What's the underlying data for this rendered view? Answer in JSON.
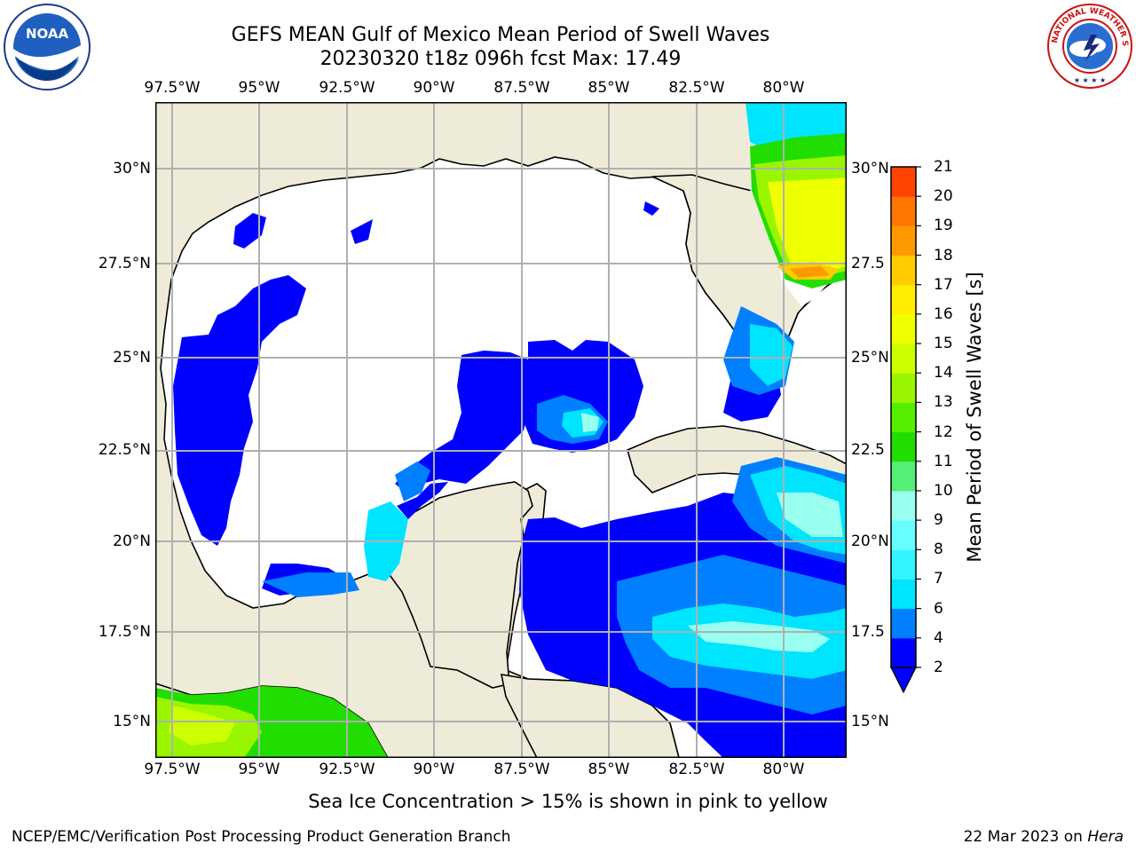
{
  "header": {
    "title_line1": "GEFS MEAN Gulf of Mexico Mean Period of Swell Waves",
    "title_line2": "20230320 t18z 096h fcst   Max: 17.49"
  },
  "logos": {
    "left": {
      "name": "noaa-logo",
      "text": "NOAA"
    },
    "right": {
      "name": "nws-logo",
      "text": "NATIONAL WEATHER SERVICE"
    }
  },
  "map": {
    "lon_labels": [
      "97.5°W",
      "95°W",
      "92.5°W",
      "90°W",
      "87.5°W",
      "85°W",
      "82.5°W",
      "80°W"
    ],
    "lat_labels_left": [
      "30°N",
      "27.5°N",
      "25°N",
      "22.5°N",
      "20°N",
      "17.5°N",
      "15°N"
    ],
    "lat_labels_right": [
      "30°N",
      "27.5",
      "25°N",
      "22.5",
      "20°N",
      "17.5",
      "15°N"
    ],
    "colors": {
      "land": "#eeecd9",
      "ocean_missing": "#ffffff",
      "grid": "#b0b0b0",
      "coast": "#000000"
    }
  },
  "colorbar": {
    "label": "Mean Period of Swell Waves [s]",
    "ticks": [
      "2",
      "4",
      "6",
      "7",
      "8",
      "9",
      "10",
      "11",
      "12",
      "13",
      "14",
      "15",
      "16",
      "17",
      "18",
      "19",
      "20",
      "21"
    ],
    "colors": [
      "#0000ff",
      "#0080ff",
      "#00e5ff",
      "#33f5ff",
      "#66ffff",
      "#99ffee",
      "#55ee77",
      "#22dd00",
      "#55ee00",
      "#99f500",
      "#ccff00",
      "#eeff00",
      "#ffee00",
      "#ffcc00",
      "#ff9900",
      "#ff7700",
      "#ff4400",
      "#ff1100"
    ]
  },
  "footer": {
    "ice_note": "Sea Ice Concentration > 15% is shown in pink to yellow",
    "left": "NCEP/EMC/Verification Post Processing Product Generation Branch",
    "right_prefix": "22 Mar 2023 on ",
    "right_machine": "Hera"
  }
}
